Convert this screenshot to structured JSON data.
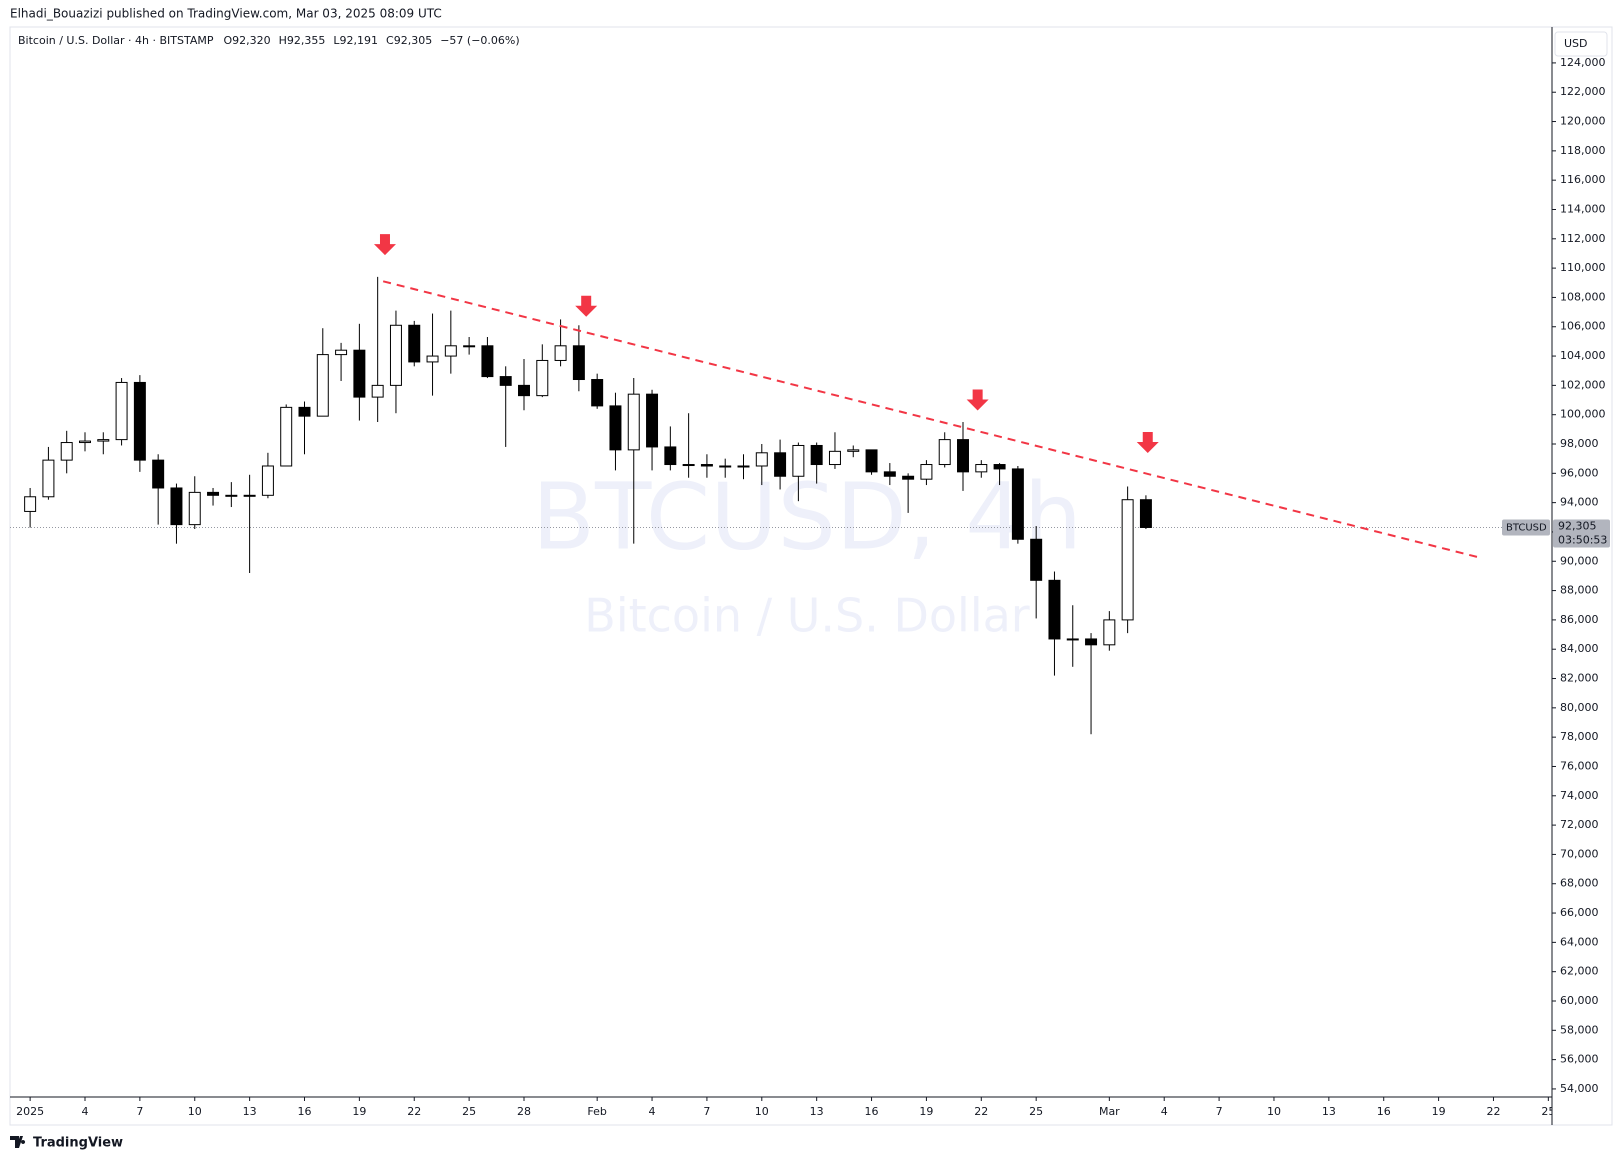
{
  "chart_data": {
    "type": "candlestick",
    "publisher": "Elhadi_Bouazizi published on TradingView.com, Mar 03, 2025 08:09 UTC",
    "title": "Bitcoin / U.S. Dollar · 4h · BITSTAMP",
    "ohlc_legend": [
      "O92,320",
      "H92,355",
      "L92,191",
      "C92,305",
      "−57 (−0.06%)"
    ],
    "watermark": [
      "BTCUSD, 4h",
      "Bitcoin / U.S. Dollar"
    ],
    "currency": "USD",
    "footer": "TradingView",
    "up_color": "#ffffff",
    "down_color": "#000000",
    "wick_color": "#000000",
    "x": [
      0,
      1,
      2,
      3,
      4,
      5,
      6,
      7,
      8,
      9,
      10,
      11,
      12,
      13,
      14,
      15,
      16,
      17,
      18,
      19,
      20,
      21,
      22,
      23,
      24,
      25,
      26,
      27,
      28,
      29,
      30,
      31,
      32,
      33,
      34,
      35,
      36,
      37,
      38,
      39,
      40,
      41,
      42,
      43,
      44,
      45,
      46,
      47,
      48,
      49,
      50,
      51,
      52,
      53,
      54,
      55,
      56,
      57,
      58,
      59,
      60,
      61
    ],
    "open": [
      93400,
      94400,
      96900,
      98100,
      98200,
      98300,
      102200,
      96900,
      95000,
      92500,
      94700,
      94500,
      94500,
      94500,
      96500,
      100500,
      99900,
      104100,
      104400,
      101200,
      102000,
      106100,
      103600,
      104000,
      104700,
      104700,
      102600,
      102000,
      101300,
      103700,
      104700,
      102400,
      100600,
      97600,
      101400,
      97800,
      96600,
      96600,
      96500,
      96500,
      96500,
      97400,
      95800,
      97900,
      96600,
      97500,
      97600,
      96100,
      95800,
      95600,
      96600,
      98300,
      96100,
      96600,
      96300,
      91500,
      88700,
      84700,
      84700,
      84300,
      86000,
      94200
    ],
    "high": [
      95000,
      97800,
      98900,
      98800,
      98800,
      102500,
      102700,
      97300,
      95300,
      95800,
      95000,
      95400,
      95900,
      97400,
      100700,
      100900,
      105900,
      104900,
      106200,
      109400,
      107100,
      106400,
      106900,
      107100,
      105300,
      105300,
      103300,
      103800,
      104800,
      106500,
      106100,
      102800,
      101500,
      102500,
      101700,
      99200,
      100100,
      97300,
      97000,
      97300,
      98000,
      98300,
      98100,
      98100,
      98800,
      97900,
      97600,
      96700,
      96000,
      96900,
      98800,
      99500,
      96900,
      96700,
      96500,
      92400,
      89300,
      87000,
      85100,
      86600,
      95100,
      94500
    ],
    "low": [
      92300,
      94200,
      96000,
      97500,
      97300,
      97900,
      96100,
      92500,
      91200,
      92200,
      93800,
      93700,
      89200,
      94300,
      96500,
      97300,
      99900,
      102300,
      99600,
      99500,
      100100,
      103300,
      101300,
      102800,
      104100,
      102500,
      97800,
      100300,
      101200,
      103300,
      101600,
      100400,
      96200,
      91200,
      96200,
      96200,
      95700,
      95700,
      95700,
      95600,
      95200,
      94900,
      94100,
      95300,
      96300,
      97100,
      95900,
      95200,
      93300,
      95200,
      96400,
      94800,
      95700,
      95200,
      91200,
      86100,
      82200,
      82800,
      78200,
      83900,
      85100,
      92200
    ],
    "close": [
      94400,
      96900,
      98100,
      98200,
      98300,
      102200,
      96900,
      95000,
      92500,
      94700,
      94500,
      94500,
      94500,
      96500,
      100500,
      99900,
      104100,
      104400,
      101200,
      102000,
      106100,
      103600,
      104000,
      104700,
      104700,
      102600,
      102000,
      101300,
      103700,
      104700,
      102400,
      100600,
      97600,
      101400,
      97800,
      96600,
      96600,
      96500,
      96500,
      96500,
      97400,
      95800,
      97900,
      96600,
      97500,
      97600,
      96100,
      95800,
      95600,
      96600,
      98300,
      96100,
      96600,
      96300,
      91500,
      88700,
      84700,
      84700,
      84300,
      86000,
      94200,
      92305
    ],
    "xlim": [
      -1.1,
      83.2
    ],
    "xticks": [
      {
        "value": 0,
        "label": "2025"
      },
      {
        "value": 3,
        "label": "4"
      },
      {
        "value": 6,
        "label": "7"
      },
      {
        "value": 9,
        "label": "10"
      },
      {
        "value": 12,
        "label": "13"
      },
      {
        "value": 15,
        "label": "16"
      },
      {
        "value": 18,
        "label": "19"
      },
      {
        "value": 21,
        "label": "22"
      },
      {
        "value": 24,
        "label": "25"
      },
      {
        "value": 27,
        "label": "28"
      },
      {
        "value": 31,
        "label": "Feb"
      },
      {
        "value": 34,
        "label": "4"
      },
      {
        "value": 37,
        "label": "7"
      },
      {
        "value": 40,
        "label": "10"
      },
      {
        "value": 43,
        "label": "13"
      },
      {
        "value": 46,
        "label": "16"
      },
      {
        "value": 49,
        "label": "19"
      },
      {
        "value": 52,
        "label": "22"
      },
      {
        "value": 55,
        "label": "25"
      },
      {
        "value": 59,
        "label": "Mar"
      },
      {
        "value": 62,
        "label": "4"
      },
      {
        "value": 65,
        "label": "7"
      },
      {
        "value": 68,
        "label": "10"
      },
      {
        "value": 71,
        "label": "13"
      },
      {
        "value": 74,
        "label": "16"
      },
      {
        "value": 77,
        "label": "19"
      },
      {
        "value": 80,
        "label": "22"
      },
      {
        "value": 83,
        "label": "25"
      }
    ],
    "ylim": [
      53450,
      126450
    ],
    "yticks": [
      {
        "value": 54000,
        "label": "54,000"
      },
      {
        "value": 56000,
        "label": "56,000"
      },
      {
        "value": 58000,
        "label": "58,000"
      },
      {
        "value": 60000,
        "label": "60,000"
      },
      {
        "value": 62000,
        "label": "62,000"
      },
      {
        "value": 64000,
        "label": "64,000"
      },
      {
        "value": 66000,
        "label": "66,000"
      },
      {
        "value": 68000,
        "label": "68,000"
      },
      {
        "value": 70000,
        "label": "70,000"
      },
      {
        "value": 72000,
        "label": "72,000"
      },
      {
        "value": 74000,
        "label": "74,000"
      },
      {
        "value": 76000,
        "label": "76,000"
      },
      {
        "value": 78000,
        "label": "78,000"
      },
      {
        "value": 80000,
        "label": "80,000"
      },
      {
        "value": 82000,
        "label": "82,000"
      },
      {
        "value": 84000,
        "label": "84,000"
      },
      {
        "value": 86000,
        "label": "86,000"
      },
      {
        "value": 88000,
        "label": "88,000"
      },
      {
        "value": 90000,
        "label": "90,000"
      },
      {
        "value": 92000,
        "label": "92,000"
      },
      {
        "value": 94000,
        "label": "94,000"
      },
      {
        "value": 96000,
        "label": "96,000"
      },
      {
        "value": 98000,
        "label": "98,000"
      },
      {
        "value": 100000,
        "label": "100,000"
      },
      {
        "value": 102000,
        "label": "102,000"
      },
      {
        "value": 104000,
        "label": "104,000"
      },
      {
        "value": 106000,
        "label": "106,000"
      },
      {
        "value": 108000,
        "label": "108,000"
      },
      {
        "value": 110000,
        "label": "110,000"
      },
      {
        "value": 112000,
        "label": "112,000"
      },
      {
        "value": 114000,
        "label": "114,000"
      },
      {
        "value": 116000,
        "label": "116,000"
      },
      {
        "value": 118000,
        "label": "118,000"
      },
      {
        "value": 120000,
        "label": "120,000"
      },
      {
        "value": 122000,
        "label": "122,000"
      },
      {
        "value": 124000,
        "label": "124,000"
      }
    ],
    "last_price": {
      "symbol": "BTCUSD",
      "value": 92305,
      "label": "92,305",
      "countdown": "03:50:53"
    },
    "trendline": {
      "color": "#f23645",
      "x": [
        19.3,
        79.1
      ],
      "y": [
        109100,
        90300
      ]
    },
    "arrows": {
      "color": "#f23645",
      "x": [
        19.4,
        30.4,
        51.8,
        61.1
      ],
      "y": [
        111500,
        107300,
        100900,
        98000
      ]
    }
  }
}
